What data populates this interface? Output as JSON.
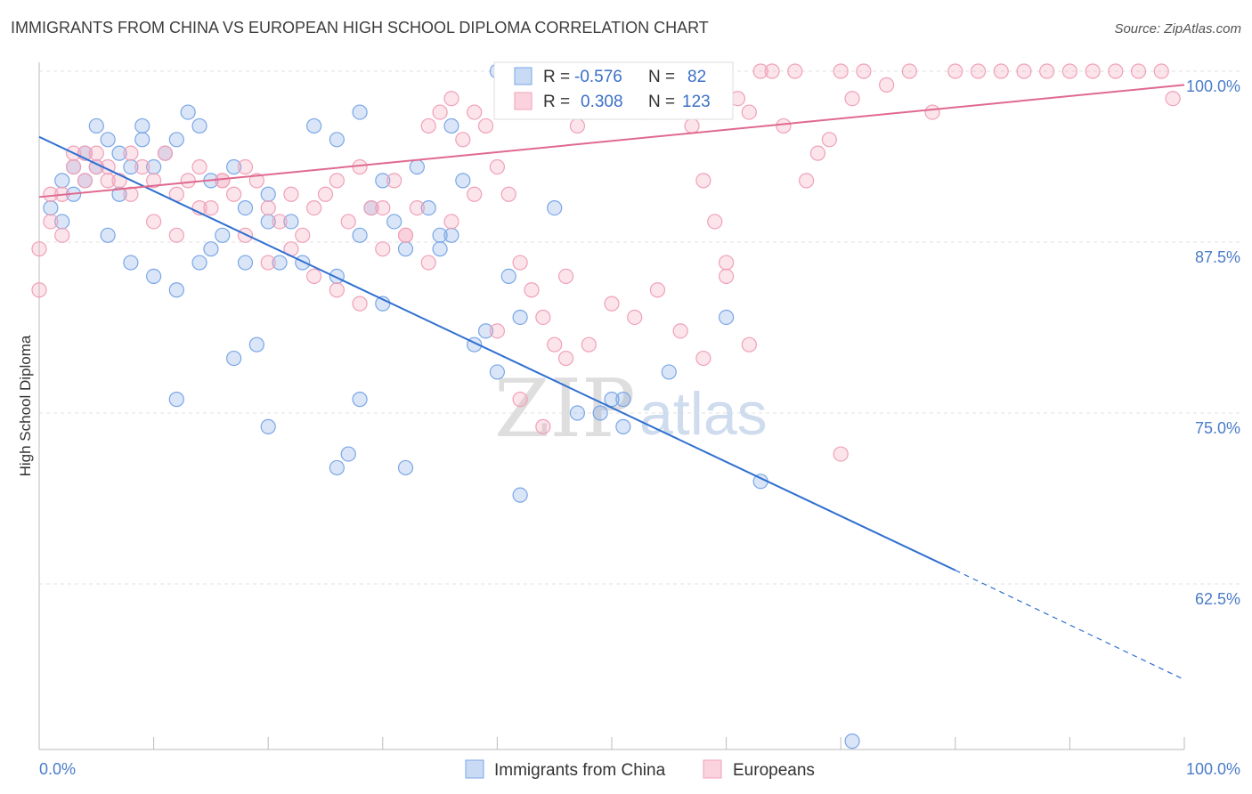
{
  "header": {
    "title": "IMMIGRANTS FROM CHINA VS EUROPEAN HIGH SCHOOL DIPLOMA CORRELATION CHART",
    "source": "Source: ZipAtlas.com"
  },
  "watermark": {
    "zip": "ZIP",
    "atlas": "atlas"
  },
  "legend_box": {
    "rows": [
      {
        "r_label": "R =",
        "r_value": "-0.576",
        "n_label": "N =",
        "n_value": "82",
        "color": "#7aa6e6"
      },
      {
        "r_label": "R =",
        "r_value": "0.308",
        "n_label": "N =",
        "n_value": "123",
        "color": "#f0a0b8"
      }
    ]
  },
  "chart_data": {
    "type": "scatter",
    "title": "IMMIGRANTS FROM CHINA VS EUROPEAN HIGH SCHOOL DIPLOMA CORRELATION CHART",
    "xlabel": "",
    "ylabel": "High School Diploma",
    "xlim": [
      0,
      100
    ],
    "ylim": [
      50,
      100
    ],
    "x_tick_labels": [
      "0.0%",
      "100.0%"
    ],
    "y_ticks": [
      100,
      87.5,
      75,
      62.5
    ],
    "y_tick_labels": [
      "100.0%",
      "87.5%",
      "75.0%",
      "62.5%"
    ],
    "grid": true,
    "legend_position": "bottom-center",
    "series": [
      {
        "name": "Immigrants from China",
        "color": "#7aa6e6",
        "line_color": "#2f6fd0",
        "R": -0.576,
        "N": 82,
        "trend": {
          "x0": 0,
          "y0": 95.2,
          "x1": 80,
          "y1": 63.5,
          "dashed_to_x": 100,
          "dashed_to_y": 55.5
        },
        "points": [
          [
            2,
            92
          ],
          [
            3,
            93
          ],
          [
            4,
            94
          ],
          [
            5,
            93
          ],
          [
            6,
            95
          ],
          [
            7,
            94
          ],
          [
            8,
            93
          ],
          [
            9,
            95
          ],
          [
            10,
            93
          ],
          [
            11,
            94
          ],
          [
            3,
            91
          ],
          [
            4,
            92
          ],
          [
            12,
            95
          ],
          [
            14,
            96
          ],
          [
            15,
            92
          ],
          [
            17,
            93
          ],
          [
            18,
            90
          ],
          [
            20,
            91
          ],
          [
            22,
            89
          ],
          [
            24,
            96
          ],
          [
            26,
            95
          ],
          [
            28,
            97
          ],
          [
            29,
            90
          ],
          [
            30,
            92
          ],
          [
            31,
            89
          ],
          [
            33,
            93
          ],
          [
            34,
            90
          ],
          [
            35,
            87
          ],
          [
            36,
            88
          ],
          [
            37,
            92
          ],
          [
            1,
            90
          ],
          [
            2,
            89
          ],
          [
            6,
            88
          ],
          [
            8,
            86
          ],
          [
            10,
            85
          ],
          [
            12,
            84
          ],
          [
            14,
            86
          ],
          [
            16,
            88
          ],
          [
            18,
            86
          ],
          [
            20,
            89
          ],
          [
            23,
            86
          ],
          [
            26,
            85
          ],
          [
            28,
            88
          ],
          [
            30,
            83
          ],
          [
            32,
            87
          ],
          [
            35,
            88
          ],
          [
            38,
            80
          ],
          [
            39,
            81
          ],
          [
            40,
            78
          ],
          [
            41,
            85
          ],
          [
            42,
            82
          ],
          [
            45,
            90
          ],
          [
            47,
            97
          ],
          [
            50,
            76
          ],
          [
            51,
            74
          ],
          [
            55,
            78
          ],
          [
            60,
            82
          ],
          [
            63,
            70
          ],
          [
            12,
            76
          ],
          [
            17,
            79
          ],
          [
            19,
            80
          ],
          [
            20,
            74
          ],
          [
            26,
            71
          ],
          [
            27,
            72
          ],
          [
            28,
            76
          ],
          [
            32,
            71
          ],
          [
            42,
            69
          ],
          [
            47,
            75
          ],
          [
            49,
            75
          ],
          [
            51,
            76
          ],
          [
            40,
            100
          ],
          [
            43,
            100
          ],
          [
            46,
            99
          ],
          [
            48,
            97
          ],
          [
            5,
            96
          ],
          [
            7,
            91
          ],
          [
            15,
            87
          ],
          [
            9,
            96
          ],
          [
            13,
            97
          ],
          [
            21,
            86
          ],
          [
            71,
            51
          ],
          [
            36,
            96
          ]
        ]
      },
      {
        "name": "Europeans",
        "color": "#f0a0b8",
        "line_color": "#e0698f",
        "R": 0.308,
        "N": 123,
        "trend": {
          "x0": 0,
          "y0": 90.8,
          "x1": 100,
          "y1": 99.0
        },
        "points": [
          [
            1,
            91
          ],
          [
            2,
            88
          ],
          [
            3,
            93
          ],
          [
            4,
            94
          ],
          [
            5,
            94
          ],
          [
            6,
            93
          ],
          [
            7,
            92
          ],
          [
            8,
            94
          ],
          [
            9,
            93
          ],
          [
            10,
            92
          ],
          [
            11,
            94
          ],
          [
            12,
            91
          ],
          [
            13,
            92
          ],
          [
            14,
            93
          ],
          [
            15,
            90
          ],
          [
            16,
            92
          ],
          [
            17,
            91
          ],
          [
            18,
            93
          ],
          [
            19,
            92
          ],
          [
            20,
            90
          ],
          [
            21,
            89
          ],
          [
            22,
            91
          ],
          [
            23,
            88
          ],
          [
            24,
            90
          ],
          [
            25,
            91
          ],
          [
            26,
            92
          ],
          [
            27,
            89
          ],
          [
            28,
            93
          ],
          [
            29,
            90
          ],
          [
            30,
            87
          ],
          [
            31,
            92
          ],
          [
            32,
            88
          ],
          [
            33,
            90
          ],
          [
            34,
            96
          ],
          [
            35,
            97
          ],
          [
            36,
            98
          ],
          [
            37,
            95
          ],
          [
            38,
            97
          ],
          [
            39,
            96
          ],
          [
            40,
            93
          ],
          [
            41,
            91
          ],
          [
            42,
            86
          ],
          [
            43,
            84
          ],
          [
            44,
            82
          ],
          [
            45,
            80
          ],
          [
            46,
            85
          ],
          [
            47,
            96
          ],
          [
            48,
            98
          ],
          [
            49,
            99
          ],
          [
            50,
            100
          ],
          [
            51,
            100
          ],
          [
            52,
            99
          ],
          [
            53,
            97
          ],
          [
            54,
            100
          ],
          [
            55,
            100
          ],
          [
            56,
            98
          ],
          [
            57,
            96
          ],
          [
            58,
            92
          ],
          [
            59,
            89
          ],
          [
            60,
            85
          ],
          [
            61,
            98
          ],
          [
            62,
            97
          ],
          [
            63,
            100
          ],
          [
            64,
            100
          ],
          [
            65,
            96
          ],
          [
            66,
            100
          ],
          [
            67,
            92
          ],
          [
            68,
            94
          ],
          [
            69,
            95
          ],
          [
            70,
            100
          ],
          [
            71,
            98
          ],
          [
            72,
            100
          ],
          [
            74,
            99
          ],
          [
            76,
            100
          ],
          [
            78,
            97
          ],
          [
            80,
            100
          ],
          [
            82,
            100
          ],
          [
            84,
            100
          ],
          [
            86,
            100
          ],
          [
            88,
            100
          ],
          [
            90,
            100
          ],
          [
            92,
            100
          ],
          [
            94,
            100
          ],
          [
            96,
            100
          ],
          [
            98,
            100
          ],
          [
            99,
            98
          ],
          [
            0,
            84
          ],
          [
            0,
            87
          ],
          [
            1,
            89
          ],
          [
            2,
            91
          ],
          [
            3,
            94
          ],
          [
            4,
            92
          ],
          [
            5,
            93
          ],
          [
            6,
            92
          ],
          [
            8,
            91
          ],
          [
            10,
            89
          ],
          [
            12,
            88
          ],
          [
            14,
            90
          ],
          [
            16,
            92
          ],
          [
            18,
            88
          ],
          [
            20,
            86
          ],
          [
            22,
            87
          ],
          [
            24,
            85
          ],
          [
            26,
            84
          ],
          [
            28,
            83
          ],
          [
            30,
            90
          ],
          [
            32,
            88
          ],
          [
            34,
            86
          ],
          [
            36,
            89
          ],
          [
            38,
            91
          ],
          [
            40,
            81
          ],
          [
            42,
            76
          ],
          [
            44,
            74
          ],
          [
            46,
            79
          ],
          [
            48,
            80
          ],
          [
            50,
            83
          ],
          [
            52,
            82
          ],
          [
            54,
            84
          ],
          [
            56,
            81
          ],
          [
            58,
            79
          ],
          [
            60,
            86
          ],
          [
            62,
            80
          ],
          [
            70,
            72
          ]
        ]
      }
    ]
  }
}
